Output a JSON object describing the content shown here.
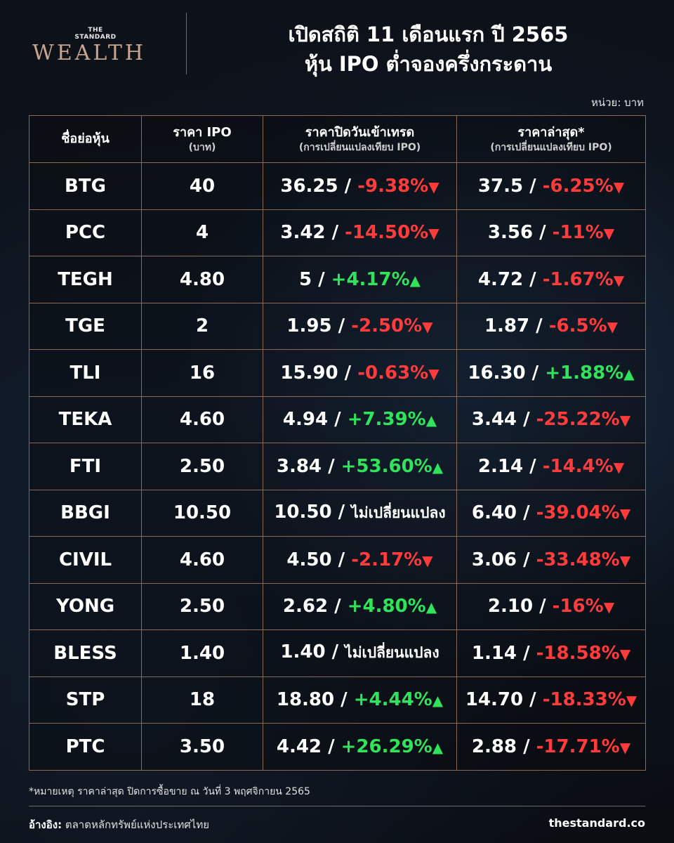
{
  "logo": {
    "top": "THE\nSTANDARD",
    "bottom": "WEALTH"
  },
  "title": {
    "line1": "เปิดสถิติ 11 เดือนแรก ปี 2565",
    "line2": "หุ้น IPO ต่ำจองครึ่งกระดาน"
  },
  "unit": "หน่วย: บาท",
  "table": {
    "headers": [
      {
        "main": "ชื่อย่อหุ้น",
        "sub": ""
      },
      {
        "main": "ราคา IPO",
        "sub": "(บาท)"
      },
      {
        "main": "ราคาปิดวันเข้าเทรด",
        "sub": "(การเปลี่ยนแปลงเทียบ IPO)"
      },
      {
        "main": "ราคาล่าสุด*",
        "sub": "(การเปลี่ยนแปลงเทียบ IPO)"
      }
    ],
    "rows": [
      {
        "ticker": "BTG",
        "ipo": "40",
        "first_price": "36.25",
        "first_change": "-9.38%",
        "first_dir": "down",
        "last_price": "37.5",
        "last_change": "-6.25%",
        "last_dir": "down"
      },
      {
        "ticker": "PCC",
        "ipo": "4",
        "first_price": "3.42",
        "first_change": "-14.50%",
        "first_dir": "down",
        "last_price": "3.56",
        "last_change": "-11%",
        "last_dir": "down"
      },
      {
        "ticker": "TEGH",
        "ipo": "4.80",
        "first_price": "5",
        "first_change": "+4.17%",
        "first_dir": "up",
        "last_price": "4.72",
        "last_change": "-1.67%",
        "last_dir": "down"
      },
      {
        "ticker": "TGE",
        "ipo": "2",
        "first_price": "1.95",
        "first_change": "-2.50%",
        "first_dir": "down",
        "last_price": "1.87",
        "last_change": "-6.5%",
        "last_dir": "down"
      },
      {
        "ticker": "TLI",
        "ipo": "16",
        "first_price": "15.90",
        "first_change": "-0.63%",
        "first_dir": "down",
        "last_price": "16.30",
        "last_change": "+1.88%",
        "last_dir": "up"
      },
      {
        "ticker": "TEKA",
        "ipo": "4.60",
        "first_price": "4.94",
        "first_change": "+7.39%",
        "first_dir": "up",
        "last_price": "3.44",
        "last_change": "-25.22%",
        "last_dir": "down"
      },
      {
        "ticker": "FTI",
        "ipo": "2.50",
        "first_price": "3.84",
        "first_change": "+53.60%",
        "first_dir": "up",
        "last_price": "2.14",
        "last_change": "-14.4%",
        "last_dir": "down"
      },
      {
        "ticker": "BBGI",
        "ipo": "10.50",
        "first_price": "10.50",
        "first_change": "ไม่เปลี่ยนแปลง",
        "first_dir": "none",
        "last_price": "6.40",
        "last_change": "-39.04%",
        "last_dir": "down"
      },
      {
        "ticker": "CIVIL",
        "ipo": "4.60",
        "first_price": "4.50",
        "first_change": "-2.17%",
        "first_dir": "down",
        "last_price": "3.06",
        "last_change": "-33.48%",
        "last_dir": "down"
      },
      {
        "ticker": "YONG",
        "ipo": "2.50",
        "first_price": "2.62",
        "first_change": "+4.80%",
        "first_dir": "up",
        "last_price": "2.10",
        "last_change": "-16%",
        "last_dir": "down"
      },
      {
        "ticker": "BLESS",
        "ipo": "1.40",
        "first_price": "1.40",
        "first_change": "ไม่เปลี่ยนแปลง",
        "first_dir": "none",
        "last_price": "1.14",
        "last_change": "-18.58%",
        "last_dir": "down"
      },
      {
        "ticker": "STP",
        "ipo": "18",
        "first_price": "18.80",
        "first_change": "+4.44%",
        "first_dir": "up",
        "last_price": "14.70",
        "last_change": "-18.33%",
        "last_dir": "down"
      },
      {
        "ticker": "PTC",
        "ipo": "3.50",
        "first_price": "4.42",
        "first_change": "+26.29%",
        "first_dir": "up",
        "last_price": "2.88",
        "last_change": "-17.71%",
        "last_dir": "down"
      }
    ]
  },
  "footnote": "*หมายเหตุ ราคาล่าสุด ปิดการซื้อขาย ณ วันที่ 3 พฤศจิกายน 2565",
  "source": {
    "label": "อ้างอิง:",
    "text": "ตลาดหลักทรัพย์แห่งประเทศไทย"
  },
  "site": "thestandard.co",
  "colors": {
    "negative": "#ff3b3b",
    "positive": "#2fe35a",
    "border": "#8a6a55",
    "brand": "#c9a58f"
  },
  "icons": {
    "down": "triangle-down-icon",
    "up": "triangle-up-icon"
  }
}
